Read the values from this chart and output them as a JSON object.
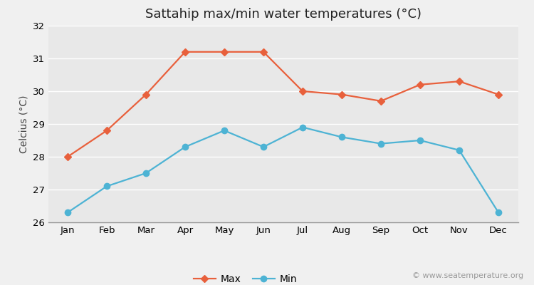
{
  "title": "Sattahip max/min water temperatures (°C)",
  "ylabel": "Celcius (°C)",
  "months": [
    "Jan",
    "Feb",
    "Mar",
    "Apr",
    "May",
    "Jun",
    "Jul",
    "Aug",
    "Sep",
    "Oct",
    "Nov",
    "Dec"
  ],
  "max_temps": [
    28.0,
    28.8,
    29.9,
    31.2,
    31.2,
    31.2,
    30.0,
    29.9,
    29.7,
    30.2,
    30.3,
    29.9
  ],
  "min_temps": [
    26.3,
    27.1,
    27.5,
    28.3,
    28.8,
    28.3,
    28.9,
    28.6,
    28.4,
    28.5,
    28.2,
    26.3
  ],
  "max_color": "#e8603c",
  "min_color": "#4db3d4",
  "figure_bg_color": "#f0f0f0",
  "plot_bg_color": "#e8e8e8",
  "ylim": [
    26,
    32
  ],
  "yticks": [
    26,
    27,
    28,
    29,
    30,
    31,
    32
  ],
  "grid_color": "#ffffff",
  "watermark": "© www.seatemperature.org",
  "legend_max": "Max",
  "legend_min": "Min",
  "title_fontsize": 13,
  "axis_label_fontsize": 10,
  "tick_fontsize": 9.5,
  "legend_fontsize": 10,
  "watermark_fontsize": 8
}
